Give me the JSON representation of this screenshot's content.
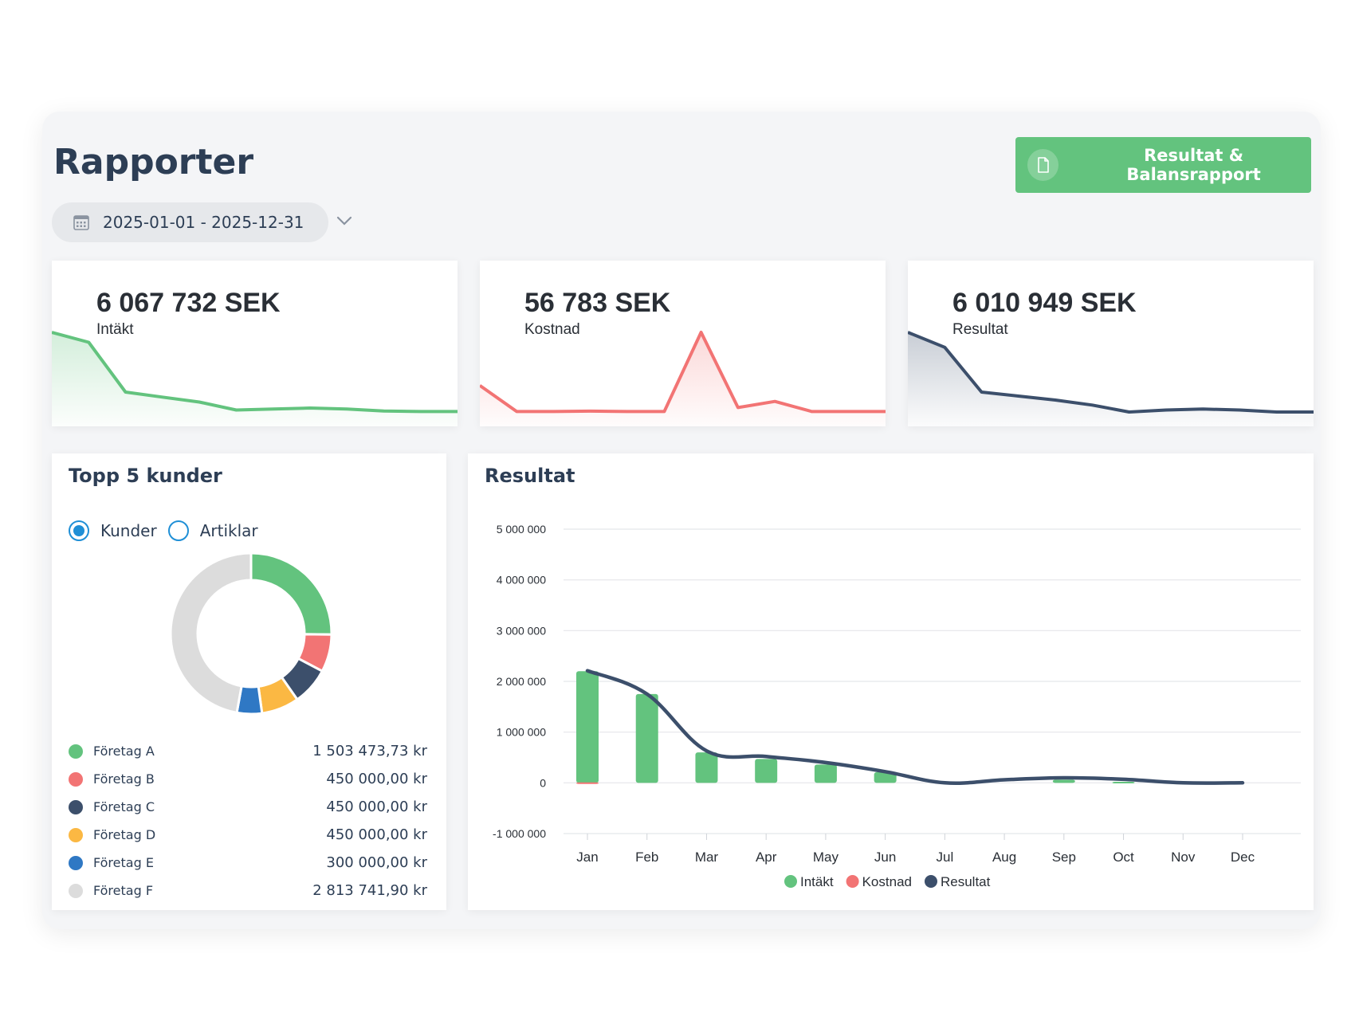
{
  "header": {
    "title": "Rapporter",
    "report_button_label": "Resultat & Balansrapport",
    "date_range": "2025-01-01 - 2025-12-31"
  },
  "kpis": [
    {
      "value": "6 067 732 SEK",
      "label": "Intäkt",
      "color": "#63c37e",
      "trend": [
        8,
        7,
        2,
        1.5,
        1,
        0.2,
        0.3,
        0.4,
        0.3,
        0.1,
        0.05,
        0.05
      ]
    },
    {
      "value": "56 783 SEK",
      "label": "Kostnad",
      "color": "#f27474",
      "trend": [
        3,
        0.05,
        0.05,
        0.1,
        0.05,
        0.05,
        9,
        0.5,
        1.2,
        0.05,
        0.05,
        0.05
      ]
    },
    {
      "value": "6 010 949 SEK",
      "label": "Resultat",
      "color": "#3c4f6b",
      "trend": [
        8,
        6.5,
        2,
        1.6,
        1.2,
        0.7,
        0,
        0.2,
        0.3,
        0.2,
        0,
        0
      ]
    }
  ],
  "top_customers": {
    "title": "Topp 5 kunder",
    "radio_options": [
      {
        "label": "Kunder",
        "selected": true
      },
      {
        "label": "Artiklar",
        "selected": false
      }
    ],
    "items": [
      {
        "name": "Företag A",
        "amount": "1 503 473,73 kr",
        "value": 1503473.73,
        "color": "#63c37e"
      },
      {
        "name": "Företag B",
        "amount": "450 000,00 kr",
        "value": 450000,
        "color": "#f27474"
      },
      {
        "name": "Företag C",
        "amount": "450 000,00 kr",
        "value": 450000,
        "color": "#3c4f6b"
      },
      {
        "name": "Företag D",
        "amount": "450 000,00 kr",
        "value": 450000,
        "color": "#fbb843"
      },
      {
        "name": "Företag E",
        "amount": "300 000,00 kr",
        "value": 300000,
        "color": "#2f78c4"
      },
      {
        "name": "Företag F",
        "amount": "2 813 741,90 kr",
        "value": 2813741.9,
        "color": "#dcdcdc"
      }
    ]
  },
  "result_card": {
    "title": "Resultat"
  },
  "chart_data": {
    "type": "bar",
    "title": "Resultat",
    "categories": [
      "Jan",
      "Feb",
      "Mar",
      "Apr",
      "May",
      "Jun",
      "Jul",
      "Aug",
      "Sep",
      "Oct",
      "Nov",
      "Dec"
    ],
    "series": [
      {
        "name": "Intäkt",
        "type": "bar",
        "color": "#63c37e",
        "values": [
          2200000,
          1750000,
          600000,
          470000,
          360000,
          210000,
          0,
          0,
          60000,
          20000,
          0,
          0
        ]
      },
      {
        "name": "Kostnad",
        "type": "bar",
        "color": "#f27474",
        "values": [
          10000,
          0,
          0,
          0,
          0,
          0,
          0,
          0,
          0,
          0,
          0,
          0
        ]
      },
      {
        "name": "Resultat",
        "type": "line",
        "color": "#3c4f6b",
        "values": [
          2210000,
          1750000,
          630000,
          520000,
          400000,
          220000,
          0,
          60000,
          100000,
          70000,
          0,
          0
        ]
      }
    ],
    "ylim": [
      -1000000,
      5000000
    ],
    "yticks": [
      5000000,
      4000000,
      3000000,
      2000000,
      1000000,
      0,
      -1000000
    ],
    "ytick_labels": [
      "5 000 000",
      "4 000 000",
      "3 000 000",
      "2 000 000",
      "1 000 000",
      "0",
      "-1 000 000"
    ],
    "grid": true,
    "legend_position": "bottom"
  }
}
